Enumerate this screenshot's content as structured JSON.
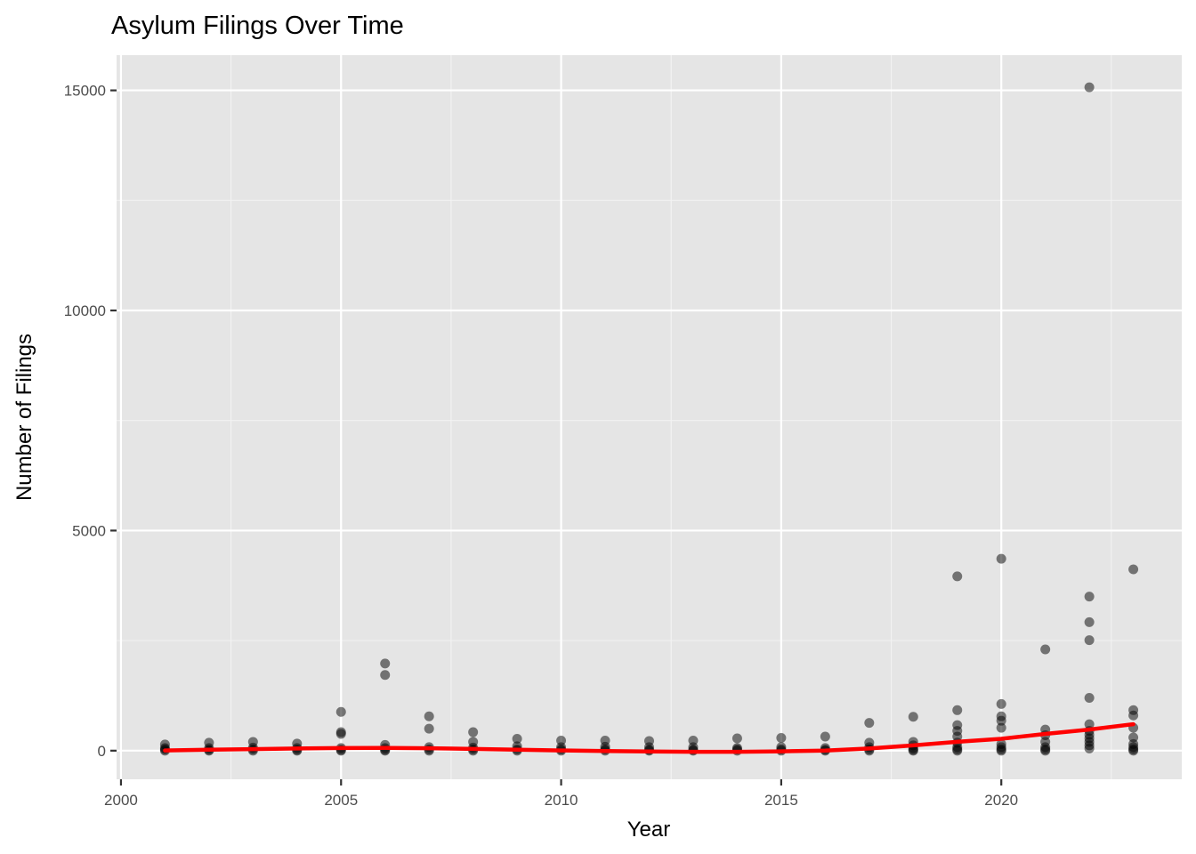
{
  "chart_data": {
    "type": "scatter",
    "title": "Asylum Filings Over Time",
    "xlabel": "Year",
    "ylabel": "Number of Filings",
    "xlim": [
      1999.9,
      2024.1
    ],
    "ylim": [
      -650,
      15800
    ],
    "x_ticks": [
      2000,
      2005,
      2010,
      2015,
      2020
    ],
    "y_ticks": [
      0,
      5000,
      10000,
      15000
    ],
    "grid": true,
    "legend": "none",
    "colors": {
      "panel_background": "#e5e5e5",
      "grid_major": "#ffffff",
      "grid_minor": "#f2f2f2",
      "points": "#000000",
      "smooth_line": "#ff0000"
    },
    "series": [
      {
        "kind": "points",
        "points": [
          [
            2001,
            0
          ],
          [
            2001,
            30
          ],
          [
            2001,
            60
          ],
          [
            2001,
            140
          ],
          [
            2002,
            0
          ],
          [
            2002,
            20
          ],
          [
            2002,
            60
          ],
          [
            2002,
            180
          ],
          [
            2003,
            0
          ],
          [
            2003,
            30
          ],
          [
            2003,
            70
          ],
          [
            2003,
            200
          ],
          [
            2004,
            0
          ],
          [
            2004,
            20
          ],
          [
            2004,
            60
          ],
          [
            2004,
            160
          ],
          [
            2005,
            0
          ],
          [
            2005,
            20
          ],
          [
            2005,
            60
          ],
          [
            2005,
            380
          ],
          [
            2005,
            420
          ],
          [
            2005,
            880
          ],
          [
            2006,
            0
          ],
          [
            2006,
            20
          ],
          [
            2006,
            60
          ],
          [
            2006,
            130
          ],
          [
            2006,
            1720
          ],
          [
            2006,
            1980
          ],
          [
            2007,
            0
          ],
          [
            2007,
            30
          ],
          [
            2007,
            80
          ],
          [
            2007,
            500
          ],
          [
            2007,
            780
          ],
          [
            2008,
            0
          ],
          [
            2008,
            30
          ],
          [
            2008,
            70
          ],
          [
            2008,
            200
          ],
          [
            2008,
            420
          ],
          [
            2009,
            0
          ],
          [
            2009,
            30
          ],
          [
            2009,
            100
          ],
          [
            2009,
            270
          ],
          [
            2010,
            0
          ],
          [
            2010,
            30
          ],
          [
            2010,
            80
          ],
          [
            2010,
            230
          ],
          [
            2011,
            0
          ],
          [
            2011,
            30
          ],
          [
            2011,
            90
          ],
          [
            2011,
            230
          ],
          [
            2012,
            0
          ],
          [
            2012,
            20
          ],
          [
            2012,
            80
          ],
          [
            2012,
            220
          ],
          [
            2013,
            0
          ],
          [
            2013,
            20
          ],
          [
            2013,
            80
          ],
          [
            2013,
            230
          ],
          [
            2014,
            0
          ],
          [
            2014,
            30
          ],
          [
            2014,
            60
          ],
          [
            2014,
            280
          ],
          [
            2015,
            0
          ],
          [
            2015,
            30
          ],
          [
            2015,
            80
          ],
          [
            2015,
            290
          ],
          [
            2016,
            0
          ],
          [
            2016,
            20
          ],
          [
            2016,
            60
          ],
          [
            2016,
            320
          ],
          [
            2017,
            0
          ],
          [
            2017,
            30
          ],
          [
            2017,
            80
          ],
          [
            2017,
            180
          ],
          [
            2017,
            630
          ],
          [
            2018,
            0
          ],
          [
            2018,
            20
          ],
          [
            2018,
            60
          ],
          [
            2018,
            120
          ],
          [
            2018,
            200
          ],
          [
            2018,
            770
          ],
          [
            2019,
            0
          ],
          [
            2019,
            30
          ],
          [
            2019,
            80
          ],
          [
            2019,
            180
          ],
          [
            2019,
            320
          ],
          [
            2019,
            450
          ],
          [
            2019,
            580
          ],
          [
            2019,
            920
          ],
          [
            2019,
            3960
          ],
          [
            2020,
            0
          ],
          [
            2020,
            30
          ],
          [
            2020,
            80
          ],
          [
            2020,
            150
          ],
          [
            2020,
            520
          ],
          [
            2020,
            680
          ],
          [
            2020,
            780
          ],
          [
            2020,
            1060
          ],
          [
            2020,
            4360
          ],
          [
            2021,
            0
          ],
          [
            2021,
            30
          ],
          [
            2021,
            80
          ],
          [
            2021,
            200
          ],
          [
            2021,
            350
          ],
          [
            2021,
            480
          ],
          [
            2021,
            2300
          ],
          [
            2022,
            50
          ],
          [
            2022,
            120
          ],
          [
            2022,
            200
          ],
          [
            2022,
            280
          ],
          [
            2022,
            360
          ],
          [
            2022,
            450
          ],
          [
            2022,
            600
          ],
          [
            2022,
            1200
          ],
          [
            2022,
            2510
          ],
          [
            2022,
            2920
          ],
          [
            2022,
            3500
          ],
          [
            2022,
            15070
          ],
          [
            2023,
            0
          ],
          [
            2023,
            30
          ],
          [
            2023,
            80
          ],
          [
            2023,
            150
          ],
          [
            2023,
            300
          ],
          [
            2023,
            520
          ],
          [
            2023,
            800
          ],
          [
            2023,
            920
          ],
          [
            2023,
            4120
          ]
        ]
      },
      {
        "kind": "smooth",
        "x": [
          2001,
          2002,
          2003,
          2004,
          2005,
          2006,
          2007,
          2008,
          2009,
          2010,
          2011,
          2012,
          2013,
          2014,
          2015,
          2016,
          2017,
          2018,
          2019,
          2020,
          2021,
          2022,
          2023
        ],
        "values": [
          5,
          20,
          35,
          50,
          60,
          62,
          55,
          40,
          20,
          5,
          -10,
          -20,
          -25,
          -25,
          -15,
          0,
          50,
          120,
          200,
          270,
          380,
          480,
          600
        ]
      }
    ]
  }
}
